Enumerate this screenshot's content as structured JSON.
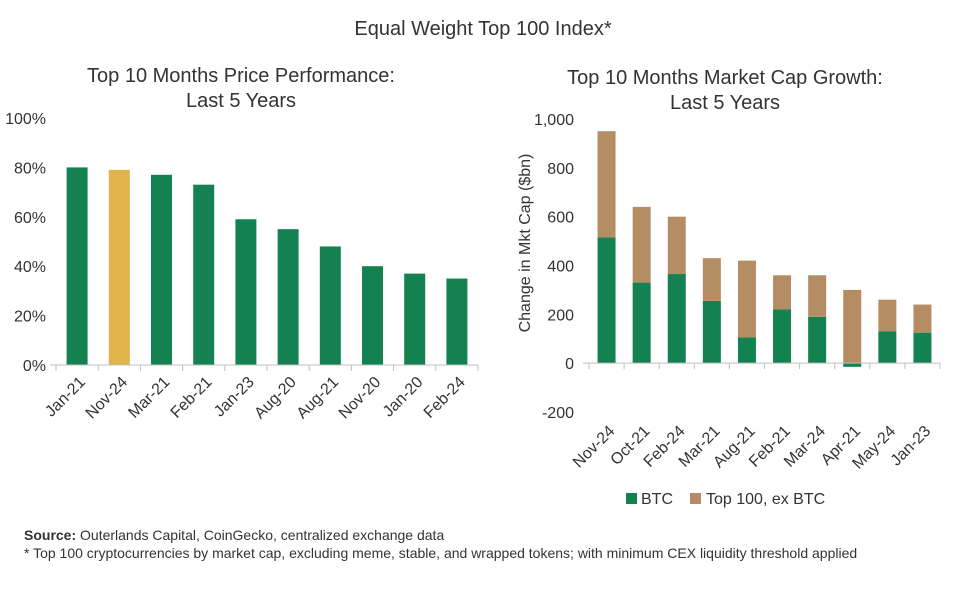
{
  "main_title": "Equal Weight Top 100 Index*",
  "colors": {
    "green": "#138250",
    "gold": "#E0B44A",
    "tan": "#B58D65",
    "axis": "#BFBFBF",
    "text": "#333333"
  },
  "footer": {
    "source_label": "Source:",
    "source_text": " Outerlands Capital, CoinGecko, centralized exchange data",
    "note": "* Top 100 cryptocurrencies  by market cap, excluding meme, stable, and wrapped tokens; with minimum CEX liquidity threshold applied"
  },
  "chart_data": [
    {
      "type": "bar",
      "title_lines": [
        "Top 10 Months Price Performance:",
        "Last 5 Years"
      ],
      "categories": [
        "Jan-21",
        "Nov-24",
        "Mar-21",
        "Feb-21",
        "Jan-23",
        "Aug-20",
        "Aug-21",
        "Nov-20",
        "Jan-20",
        "Feb-24"
      ],
      "values": [
        80,
        79,
        77,
        73,
        59,
        55,
        48,
        40,
        37,
        35
      ],
      "highlight_index": 1,
      "ylim": [
        0,
        100
      ],
      "yticks": [
        0,
        20,
        40,
        60,
        80,
        100
      ],
      "ytick_labels": [
        "0%",
        "20%",
        "40%",
        "60%",
        "80%",
        "100%"
      ],
      "xlabel": "",
      "ylabel": "",
      "grid": false
    },
    {
      "type": "stacked-bar",
      "title_lines": [
        "Top 10 Months Market Cap Growth:",
        "Last 5 Years"
      ],
      "categories": [
        "Nov-24",
        "Oct-21",
        "Feb-24",
        "Mar-21",
        "Aug-21",
        "Feb-21",
        "Mar-24",
        "Apr-21",
        "May-24",
        "Jan-23"
      ],
      "series": [
        {
          "name": "BTC",
          "values": [
            515,
            330,
            365,
            255,
            105,
            220,
            190,
            -15,
            130,
            125
          ]
        },
        {
          "name": "Top 100, ex BTC",
          "values": [
            435,
            310,
            235,
            175,
            315,
            140,
            170,
            300,
            130,
            115
          ]
        }
      ],
      "ylim": [
        -200,
        1000
      ],
      "yticks": [
        -200,
        0,
        200,
        400,
        600,
        800,
        1000
      ],
      "ytick_labels": [
        "-200",
        "0",
        "200",
        "400",
        "600",
        "800",
        "1,000"
      ],
      "xlabel": "",
      "ylabel": "Change in Mkt Cap ($bn)",
      "legend_position": "bottom",
      "grid": false
    }
  ]
}
